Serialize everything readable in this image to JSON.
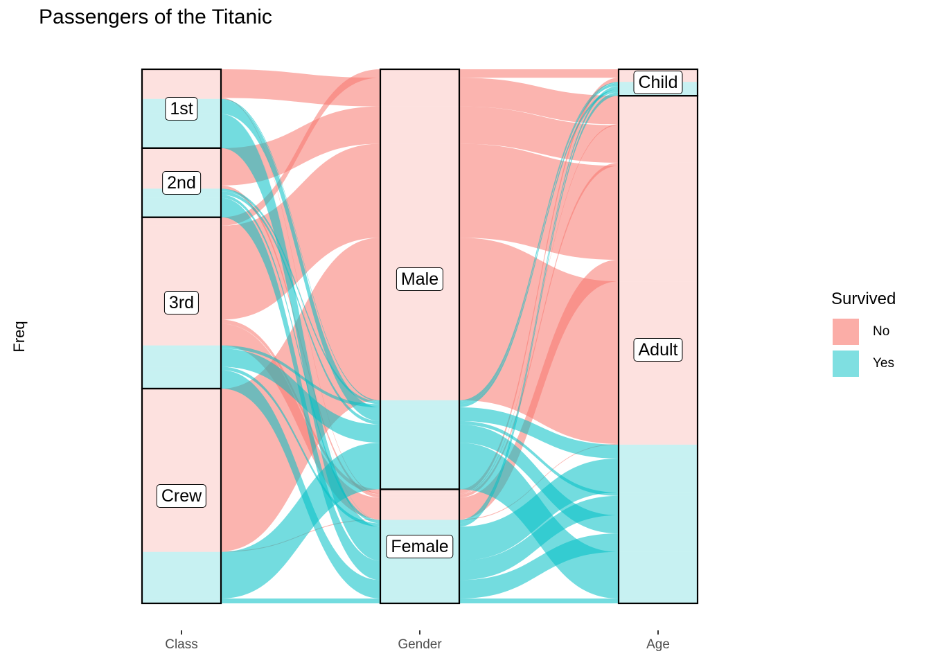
{
  "chart_data": {
    "type": "alluvial",
    "title": "Passengers of the Titanic",
    "ylabel": "Freq",
    "axes": [
      "Class",
      "Gender",
      "Age"
    ],
    "strata": {
      "Class": [
        "1st",
        "2nd",
        "3rd",
        "Crew"
      ],
      "Gender": [
        "Male",
        "Female"
      ],
      "Age": [
        "Child",
        "Adult"
      ]
    },
    "fill_variable": "Survived",
    "fill_levels": [
      "No",
      "Yes"
    ],
    "colors": {
      "No": "#F8766D",
      "Yes": "#00BFC4"
    },
    "flows": [
      {
        "Class": "1st",
        "Gender": "Male",
        "Age": "Child",
        "Survived": "No",
        "Freq": 0
      },
      {
        "Class": "2nd",
        "Gender": "Male",
        "Age": "Child",
        "Survived": "No",
        "Freq": 0
      },
      {
        "Class": "3rd",
        "Gender": "Male",
        "Age": "Child",
        "Survived": "No",
        "Freq": 35
      },
      {
        "Class": "Crew",
        "Gender": "Male",
        "Age": "Child",
        "Survived": "No",
        "Freq": 0
      },
      {
        "Class": "1st",
        "Gender": "Female",
        "Age": "Child",
        "Survived": "No",
        "Freq": 0
      },
      {
        "Class": "2nd",
        "Gender": "Female",
        "Age": "Child",
        "Survived": "No",
        "Freq": 0
      },
      {
        "Class": "3rd",
        "Gender": "Female",
        "Age": "Child",
        "Survived": "No",
        "Freq": 17
      },
      {
        "Class": "Crew",
        "Gender": "Female",
        "Age": "Child",
        "Survived": "No",
        "Freq": 0
      },
      {
        "Class": "1st",
        "Gender": "Male",
        "Age": "Adult",
        "Survived": "No",
        "Freq": 118
      },
      {
        "Class": "2nd",
        "Gender": "Male",
        "Age": "Adult",
        "Survived": "No",
        "Freq": 154
      },
      {
        "Class": "3rd",
        "Gender": "Male",
        "Age": "Adult",
        "Survived": "No",
        "Freq": 387
      },
      {
        "Class": "Crew",
        "Gender": "Male",
        "Age": "Adult",
        "Survived": "No",
        "Freq": 670
      },
      {
        "Class": "1st",
        "Gender": "Female",
        "Age": "Adult",
        "Survived": "No",
        "Freq": 4
      },
      {
        "Class": "2nd",
        "Gender": "Female",
        "Age": "Adult",
        "Survived": "No",
        "Freq": 13
      },
      {
        "Class": "3rd",
        "Gender": "Female",
        "Age": "Adult",
        "Survived": "No",
        "Freq": 89
      },
      {
        "Class": "Crew",
        "Gender": "Female",
        "Age": "Adult",
        "Survived": "No",
        "Freq": 3
      },
      {
        "Class": "1st",
        "Gender": "Male",
        "Age": "Child",
        "Survived": "Yes",
        "Freq": 5
      },
      {
        "Class": "2nd",
        "Gender": "Male",
        "Age": "Child",
        "Survived": "Yes",
        "Freq": 11
      },
      {
        "Class": "3rd",
        "Gender": "Male",
        "Age": "Child",
        "Survived": "Yes",
        "Freq": 13
      },
      {
        "Class": "Crew",
        "Gender": "Male",
        "Age": "Child",
        "Survived": "Yes",
        "Freq": 0
      },
      {
        "Class": "1st",
        "Gender": "Female",
        "Age": "Child",
        "Survived": "Yes",
        "Freq": 1
      },
      {
        "Class": "2nd",
        "Gender": "Female",
        "Age": "Child",
        "Survived": "Yes",
        "Freq": 13
      },
      {
        "Class": "3rd",
        "Gender": "Female",
        "Age": "Child",
        "Survived": "Yes",
        "Freq": 14
      },
      {
        "Class": "Crew",
        "Gender": "Female",
        "Age": "Child",
        "Survived": "Yes",
        "Freq": 0
      },
      {
        "Class": "1st",
        "Gender": "Male",
        "Age": "Adult",
        "Survived": "Yes",
        "Freq": 57
      },
      {
        "Class": "2nd",
        "Gender": "Male",
        "Age": "Adult",
        "Survived": "Yes",
        "Freq": 14
      },
      {
        "Class": "3rd",
        "Gender": "Male",
        "Age": "Adult",
        "Survived": "Yes",
        "Freq": 75
      },
      {
        "Class": "Crew",
        "Gender": "Male",
        "Age": "Adult",
        "Survived": "Yes",
        "Freq": 192
      },
      {
        "Class": "1st",
        "Gender": "Female",
        "Age": "Adult",
        "Survived": "Yes",
        "Freq": 140
      },
      {
        "Class": "2nd",
        "Gender": "Female",
        "Age": "Adult",
        "Survived": "Yes",
        "Freq": 80
      },
      {
        "Class": "3rd",
        "Gender": "Female",
        "Age": "Adult",
        "Survived": "Yes",
        "Freq": 76
      },
      {
        "Class": "Crew",
        "Gender": "Female",
        "Age": "Adult",
        "Survived": "Yes",
        "Freq": 20
      }
    ],
    "grid": false,
    "legend_position": "right"
  }
}
